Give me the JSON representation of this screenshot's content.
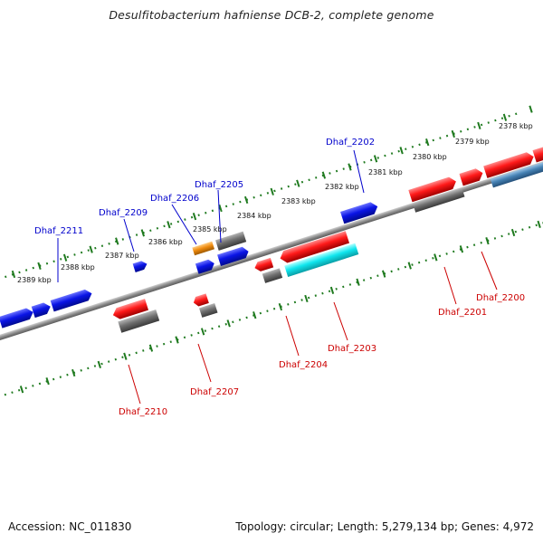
{
  "title": "Desulfitobacterium hafniense DCB-2, complete genome",
  "footer": {
    "accession": "Accession: NC_011830",
    "summary": "Topology: circular; Length: 5,279,134 bp; Genes: 4,972"
  },
  "colors": {
    "backbone": "#8c8c8c",
    "ruler": "#1f7a1f",
    "forward_label": "#0000cc",
    "reverse_label": "#cc0000",
    "gene_blue": "#0a14e6",
    "gene_red": "#ff1a1a",
    "gene_gray": "#707070",
    "gene_orange": "#f08c10",
    "gene_cyan": "#10e6ee",
    "gene_steel": "#4682b4"
  },
  "ruler_labels": [
    "2378 kbp",
    "2379 kbp",
    "2380 kbp",
    "2381 kbp",
    "2382 kbp",
    "2383 kbp",
    "2384 kbp",
    "2385 kbp",
    "2386 kbp",
    "2387 kbp",
    "2388 kbp",
    "2389 kbp"
  ],
  "forward_genes": [
    "Dhaf_2202",
    "Dhaf_2205",
    "Dhaf_2206",
    "Dhaf_2209",
    "Dhaf_2211"
  ],
  "reverse_genes": [
    "Dhaf_2200",
    "Dhaf_2201",
    "Dhaf_2203",
    "Dhaf_2204",
    "Dhaf_2207",
    "Dhaf_2210"
  ]
}
